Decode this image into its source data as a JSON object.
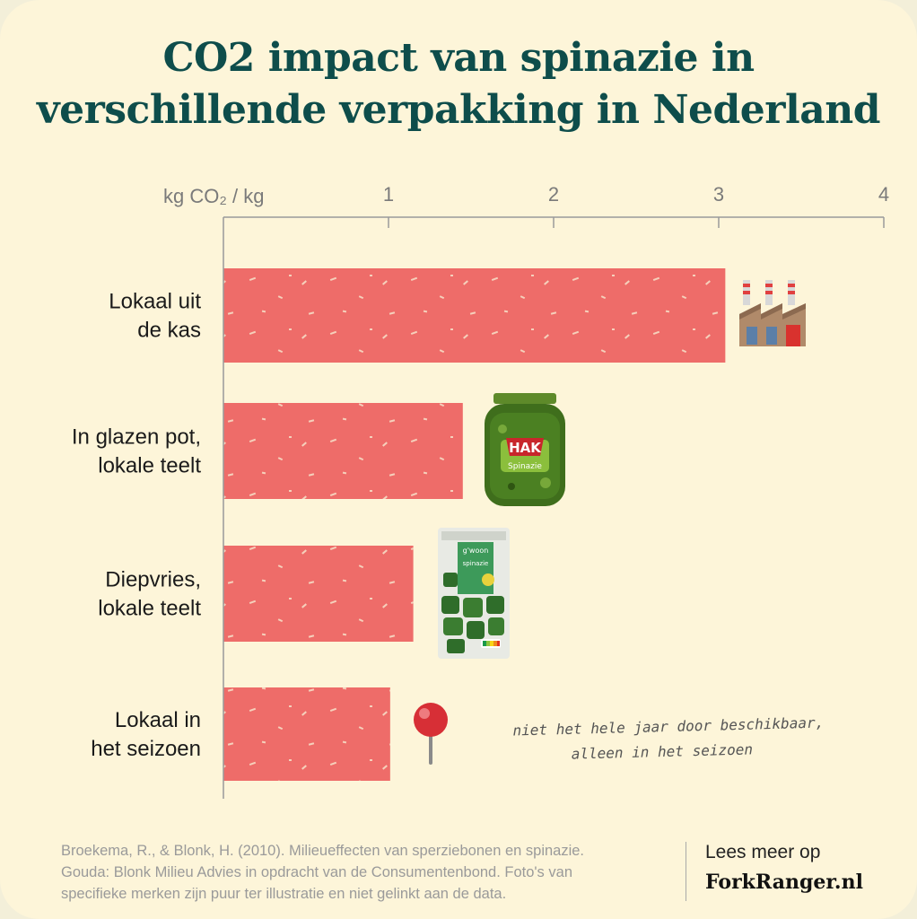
{
  "title_lines": [
    "CO2 impact van spinazie in",
    "verschillende verpakking in Nederland"
  ],
  "chart_data": {
    "type": "bar",
    "orientation": "horizontal",
    "unit_label": "kg CO₂  / kg",
    "xlim": [
      0,
      4
    ],
    "ticks": [
      {
        "value": 1,
        "label": "1"
      },
      {
        "value": 2,
        "label": "2"
      },
      {
        "value": 3,
        "label": "3"
      },
      {
        "value": 4,
        "label": "4"
      }
    ],
    "bar_color": "#ee6c69",
    "categories": [
      {
        "lines": [
          "Lokaal uit",
          "de kas"
        ],
        "value": 3.04,
        "icon": "factory-icon"
      },
      {
        "lines": [
          "In glazen pot,",
          "lokale teelt"
        ],
        "value": 1.45,
        "icon": "glass-jar-icon"
      },
      {
        "lines": [
          "Diepvries,",
          "lokale teelt"
        ],
        "value": 1.15,
        "icon": "frozen-bag-icon"
      },
      {
        "lines": [
          "Lokaal in",
          "het seizoen"
        ],
        "value": 1.01,
        "icon": "map-pin-icon"
      }
    ],
    "annotation_lines": [
      "niet het hele jaar door beschikbaar,",
      "alleen in het seizoen"
    ]
  },
  "source_lines": [
    "Broekema, R., & Blonk, H. (2010). Milieueffecten van sperziebonen en spinazie.",
    "Gouda: Blonk Milieu Advies in opdracht van de Consumentenbond. Foto's van",
    "specifieke merken zijn puur ter illustratie en niet gelinkt aan de data."
  ],
  "footer": {
    "more_label": "Lees meer op",
    "brand": "ForkRanger.nl"
  },
  "icons": {
    "jar_label": "HAK",
    "jar_sublabel": "Spinazie",
    "bag_label": "g'woon",
    "bag_sublabel": "spinazie"
  },
  "colors": {
    "background": "#fdf5d9",
    "title": "#0e4d4b",
    "bar": "#ee6c69"
  }
}
